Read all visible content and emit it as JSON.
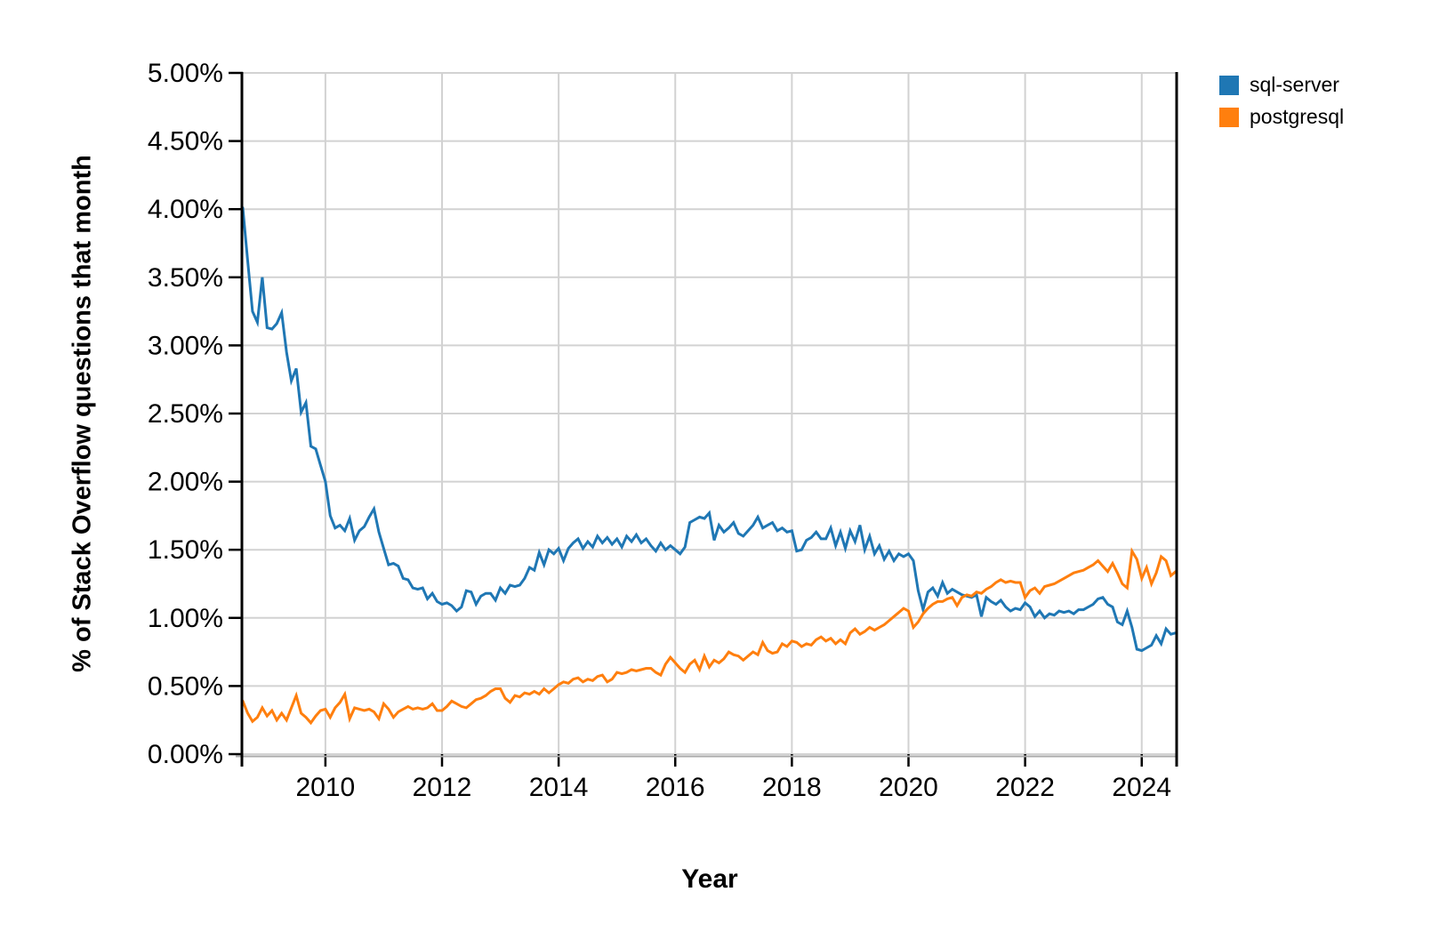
{
  "chart_data": {
    "type": "line",
    "title": "",
    "xlabel": "Year",
    "ylabel": "% of Stack Overflow questions that month",
    "legend_position": "top-right-outside",
    "grid": true,
    "colors": {
      "grid_line": "#d2d2d2",
      "axis_baseline": "#aaaaaa",
      "spine": "#000000",
      "text": "#000000",
      "background": "#ffffff"
    },
    "x_axis": {
      "unit": "year",
      "range_decimal_years": [
        2008.5833,
        2024.5833
      ],
      "ticks": [
        2010,
        2012,
        2014,
        2016,
        2018,
        2020,
        2022,
        2024
      ]
    },
    "y_axis": {
      "unit": "percent",
      "range": [
        0,
        5
      ],
      "tick_step": 0.5,
      "tick_labels": [
        "0.00%",
        "0.50%",
        "1.00%",
        "1.50%",
        "2.00%",
        "2.50%",
        "3.00%",
        "3.50%",
        "4.00%",
        "4.50%",
        "5.00%"
      ]
    },
    "x_start": {
      "year": 2008,
      "month": 8
    },
    "x_interval": "month",
    "series": [
      {
        "name": "sql-server",
        "color": "#1f77b4",
        "values": [
          4.01,
          3.62,
          3.25,
          3.17,
          3.5,
          3.13,
          3.12,
          3.16,
          3.24,
          2.95,
          2.74,
          2.83,
          2.51,
          2.58,
          2.26,
          2.24,
          2.12,
          2.0,
          1.75,
          1.66,
          1.68,
          1.64,
          1.73,
          1.57,
          1.64,
          1.67,
          1.74,
          1.8,
          1.63,
          1.51,
          1.39,
          1.4,
          1.38,
          1.29,
          1.28,
          1.22,
          1.21,
          1.22,
          1.14,
          1.18,
          1.12,
          1.1,
          1.11,
          1.09,
          1.05,
          1.08,
          1.2,
          1.19,
          1.1,
          1.16,
          1.18,
          1.18,
          1.13,
          1.22,
          1.18,
          1.24,
          1.23,
          1.24,
          1.29,
          1.37,
          1.35,
          1.48,
          1.39,
          1.5,
          1.47,
          1.51,
          1.42,
          1.51,
          1.55,
          1.58,
          1.51,
          1.56,
          1.52,
          1.6,
          1.55,
          1.59,
          1.54,
          1.58,
          1.52,
          1.6,
          1.56,
          1.61,
          1.55,
          1.58,
          1.53,
          1.49,
          1.55,
          1.5,
          1.53,
          1.5,
          1.47,
          1.52,
          1.7,
          1.72,
          1.74,
          1.73,
          1.77,
          1.57,
          1.68,
          1.63,
          1.66,
          1.7,
          1.62,
          1.6,
          1.64,
          1.68,
          1.74,
          1.66,
          1.68,
          1.7,
          1.64,
          1.66,
          1.63,
          1.64,
          1.49,
          1.5,
          1.57,
          1.59,
          1.63,
          1.58,
          1.58,
          1.66,
          1.53,
          1.63,
          1.51,
          1.64,
          1.56,
          1.68,
          1.5,
          1.6,
          1.47,
          1.53,
          1.43,
          1.49,
          1.42,
          1.47,
          1.45,
          1.47,
          1.42,
          1.2,
          1.06,
          1.19,
          1.22,
          1.16,
          1.26,
          1.18,
          1.21,
          1.19,
          1.17,
          1.16,
          1.15,
          1.17,
          1.01,
          1.15,
          1.12,
          1.1,
          1.13,
          1.08,
          1.05,
          1.07,
          1.06,
          1.11,
          1.08,
          1.01,
          1.05,
          1.0,
          1.03,
          1.02,
          1.05,
          1.04,
          1.05,
          1.03,
          1.06,
          1.06,
          1.08,
          1.1,
          1.14,
          1.15,
          1.1,
          1.08,
          0.97,
          0.95,
          1.05,
          0.93,
          0.77,
          0.76,
          0.78,
          0.8,
          0.87,
          0.81,
          0.92,
          0.88,
          0.89
        ]
      },
      {
        "name": "postgresql",
        "color": "#ff7f0e",
        "values": [
          0.39,
          0.3,
          0.24,
          0.27,
          0.34,
          0.28,
          0.32,
          0.25,
          0.3,
          0.25,
          0.34,
          0.43,
          0.3,
          0.27,
          0.23,
          0.28,
          0.32,
          0.33,
          0.27,
          0.34,
          0.38,
          0.44,
          0.26,
          0.34,
          0.33,
          0.32,
          0.33,
          0.31,
          0.26,
          0.37,
          0.33,
          0.27,
          0.31,
          0.33,
          0.35,
          0.33,
          0.34,
          0.33,
          0.34,
          0.37,
          0.32,
          0.32,
          0.35,
          0.39,
          0.37,
          0.35,
          0.34,
          0.37,
          0.4,
          0.41,
          0.43,
          0.46,
          0.48,
          0.48,
          0.41,
          0.38,
          0.43,
          0.42,
          0.45,
          0.44,
          0.46,
          0.44,
          0.48,
          0.45,
          0.48,
          0.51,
          0.53,
          0.52,
          0.55,
          0.56,
          0.53,
          0.55,
          0.54,
          0.57,
          0.58,
          0.53,
          0.55,
          0.6,
          0.59,
          0.6,
          0.62,
          0.61,
          0.62,
          0.63,
          0.63,
          0.6,
          0.58,
          0.66,
          0.71,
          0.67,
          0.63,
          0.6,
          0.66,
          0.69,
          0.62,
          0.72,
          0.64,
          0.69,
          0.67,
          0.7,
          0.75,
          0.73,
          0.72,
          0.69,
          0.72,
          0.75,
          0.73,
          0.82,
          0.76,
          0.74,
          0.75,
          0.81,
          0.79,
          0.83,
          0.82,
          0.79,
          0.81,
          0.8,
          0.84,
          0.86,
          0.83,
          0.85,
          0.81,
          0.84,
          0.81,
          0.89,
          0.92,
          0.88,
          0.9,
          0.93,
          0.91,
          0.93,
          0.95,
          0.98,
          1.01,
          1.04,
          1.07,
          1.05,
          0.93,
          0.97,
          1.03,
          1.07,
          1.1,
          1.12,
          1.12,
          1.14,
          1.15,
          1.09,
          1.15,
          1.17,
          1.16,
          1.19,
          1.18,
          1.21,
          1.23,
          1.26,
          1.28,
          1.26,
          1.27,
          1.26,
          1.26,
          1.15,
          1.2,
          1.22,
          1.18,
          1.23,
          1.24,
          1.25,
          1.27,
          1.29,
          1.31,
          1.33,
          1.34,
          1.35,
          1.37,
          1.39,
          1.42,
          1.38,
          1.34,
          1.4,
          1.33,
          1.25,
          1.22,
          1.49,
          1.43,
          1.29,
          1.37,
          1.25,
          1.33,
          1.45,
          1.42,
          1.31,
          1.34
        ]
      }
    ]
  }
}
